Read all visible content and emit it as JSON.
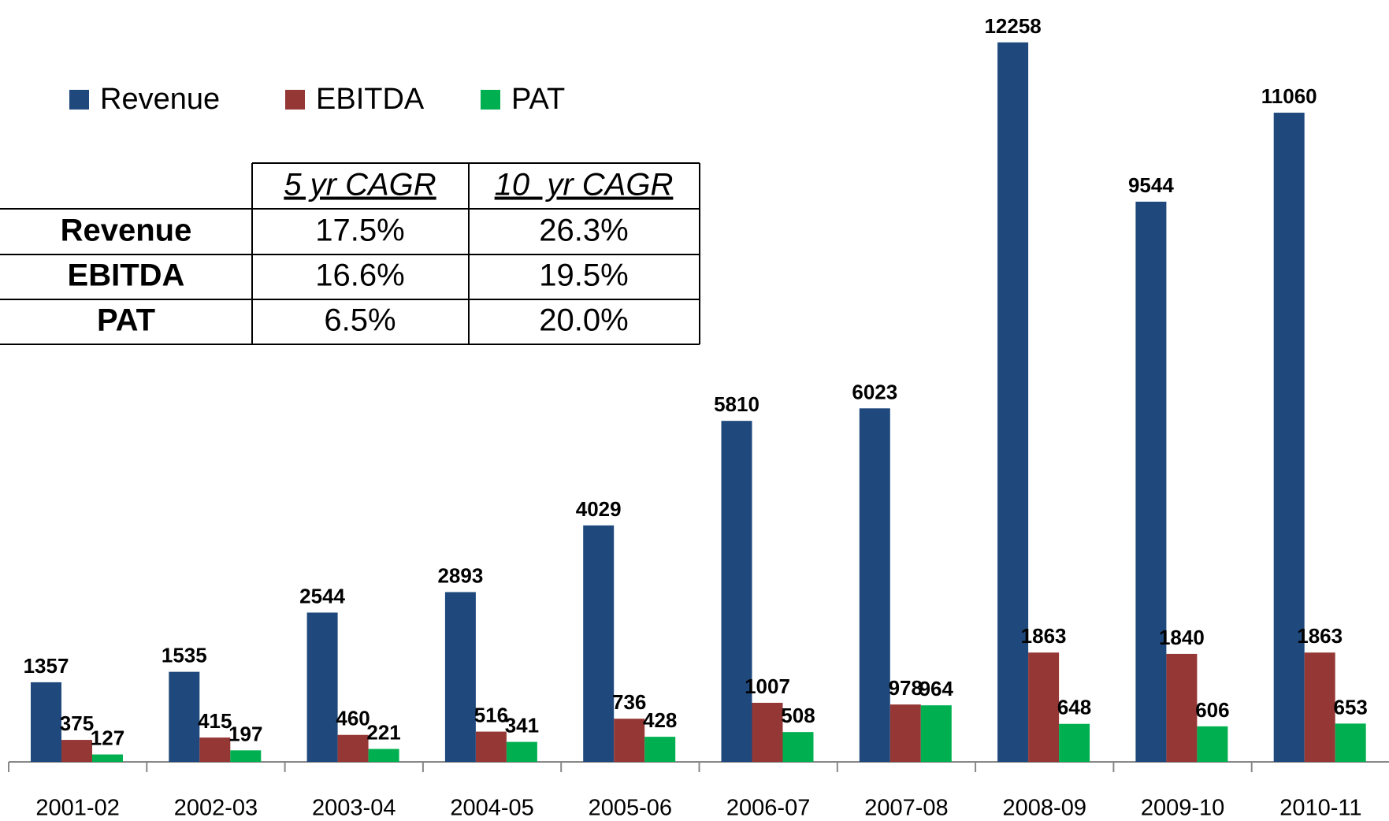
{
  "chart_data": {
    "type": "bar",
    "categories": [
      "2001-02",
      "2002-03",
      "2003-04",
      "2004-05",
      "2005-06",
      "2006-07",
      "2007-08",
      "2008-09",
      "2009-10",
      "2010-11"
    ],
    "series": [
      {
        "name": "Revenue",
        "color": "#1f497d",
        "values": [
          1357,
          1535,
          2544,
          2893,
          4029,
          5810,
          6023,
          12258,
          9544,
          11060
        ]
      },
      {
        "name": "EBITDA",
        "color": "#953735",
        "values": [
          375,
          415,
          460,
          516,
          736,
          1007,
          978,
          1863,
          1840,
          1863
        ]
      },
      {
        "name": "PAT",
        "color": "#00b050",
        "values": [
          127,
          197,
          221,
          341,
          428,
          508,
          964,
          648,
          606,
          653
        ]
      }
    ],
    "legend": "top-left"
  },
  "table": {
    "header": [
      "5 yr CAGR",
      "10  yr CAGR"
    ],
    "rows": [
      [
        "Revenue",
        "17.5%",
        "26.3%"
      ],
      [
        "EBITDA",
        "16.6%",
        "19.5%"
      ],
      [
        "PAT",
        "6.5%",
        "20.0%"
      ]
    ]
  }
}
